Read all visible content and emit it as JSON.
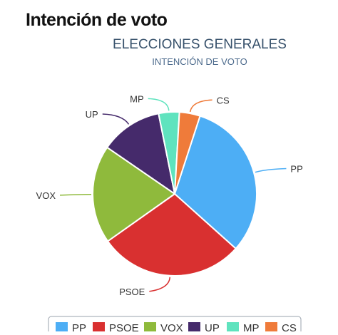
{
  "page": {
    "heading": "Intención de voto"
  },
  "chart_data": {
    "type": "pie",
    "title": "ELECCIONES GENERALES",
    "subtitle": "INTENCIÓN DE VOTO",
    "slices": [
      {
        "name": "PP",
        "value": 31,
        "color": "#4DAEF5"
      },
      {
        "name": "PSOE",
        "value": 28,
        "color": "#D93030"
      },
      {
        "name": "VOX",
        "value": 19,
        "color": "#8FBA3C"
      },
      {
        "name": "UP",
        "value": 12,
        "color": "#452A6B"
      },
      {
        "name": "MP",
        "value": 4,
        "color": "#5FE3BE"
      },
      {
        "name": "CS",
        "value": 4,
        "color": "#EF7B3A"
      }
    ],
    "legend": {
      "placement": "bottom"
    }
  }
}
